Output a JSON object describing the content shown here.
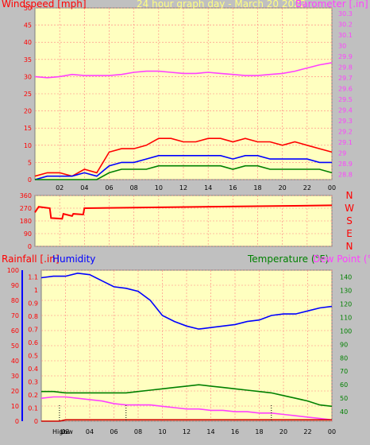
{
  "header": {
    "title": "24 hour graph day - March 20 2022",
    "windspeed_label": "Windspeed [mph]",
    "barometer_label": "Barometer [.in]"
  },
  "colors": {
    "background": "#c0c0c0",
    "plot_bg": "#ffffc0",
    "grid": "#ff8080",
    "title": "#ffff80",
    "red": "#ff0000",
    "blue": "#0000ff",
    "green": "#008000",
    "magenta": "#ff40ff",
    "dark_red": "#cc0000"
  },
  "time_ticks": [
    "02",
    "04",
    "06",
    "08",
    "10",
    "12",
    "14",
    "16",
    "18",
    "20",
    "22",
    "00"
  ],
  "panels": {
    "wind": {
      "left_ticks": [
        "0",
        "5",
        "10",
        "15",
        "20",
        "25",
        "30",
        "35",
        "40",
        "45",
        "50"
      ],
      "right_ticks": [
        "28.8",
        "28.9",
        "29",
        "29.1",
        "29.2",
        "29.3",
        "29.4",
        "29.5",
        "29.6",
        "29.7",
        "29.8",
        "29.9",
        "30",
        "30.1",
        "30.2",
        "30.3"
      ]
    },
    "direction": {
      "left_ticks": [
        "0",
        "90",
        "180",
        "270",
        "360"
      ],
      "compass": [
        "N",
        "W",
        "S",
        "E",
        "N"
      ]
    },
    "bottom": {
      "rain_label": "Rainfall [.in]",
      "humidity_label": "Humidity",
      "temp_label": "Temperature (°F)",
      "dew_label": "Dew Point (°F)",
      "rain_ticks": [
        "0",
        "0.1",
        "0.2",
        "0.3",
        "0.4",
        "0.5",
        "0.6",
        "0.7",
        "0.8",
        "0.9",
        "1",
        "1.1"
      ],
      "humidity_ticks": [
        "0",
        "10",
        "20",
        "30",
        "40",
        "50",
        "60",
        "70",
        "80",
        "90",
        "100"
      ],
      "temp_ticks": [
        "40",
        "50",
        "60",
        "70",
        "80",
        "90",
        "100",
        "110",
        "120",
        "130",
        "140"
      ],
      "high_label": "High",
      "low_label": "Low"
    }
  },
  "chart_data": [
    {
      "type": "line",
      "x_unit": "hour",
      "xlim": [
        0,
        24
      ],
      "ylim": [
        0,
        50
      ],
      "y2lim": [
        28.75,
        30.35
      ],
      "series": [
        {
          "name": "Windspeed",
          "color": "#ff0000",
          "x": [
            0,
            1,
            2,
            3,
            4,
            5,
            6,
            7,
            8,
            9,
            10,
            11,
            12,
            13,
            14,
            15,
            16,
            17,
            18,
            19,
            20,
            21,
            22,
            23,
            24
          ],
          "values": [
            1,
            2,
            2,
            1,
            3,
            2,
            8,
            9,
            9,
            10,
            12,
            12,
            11,
            11,
            12,
            12,
            11,
            12,
            11,
            11,
            10,
            11,
            10,
            9,
            8
          ]
        },
        {
          "name": "Windspeed average",
          "color": "#0000ff",
          "x": [
            0,
            1,
            2,
            3,
            4,
            5,
            6,
            7,
            8,
            9,
            10,
            11,
            12,
            13,
            14,
            15,
            16,
            17,
            18,
            19,
            20,
            21,
            22,
            23,
            24
          ],
          "values": [
            0,
            1,
            1,
            1,
            2,
            1,
            4,
            5,
            5,
            6,
            7,
            7,
            7,
            7,
            7,
            7,
            6,
            7,
            7,
            6,
            6,
            6,
            6,
            5,
            5
          ]
        },
        {
          "name": "Wind gust minimum",
          "color": "#008000",
          "x": [
            0,
            1,
            2,
            3,
            4,
            5,
            6,
            7,
            8,
            9,
            10,
            11,
            12,
            13,
            14,
            15,
            16,
            17,
            18,
            19,
            20,
            21,
            22,
            23,
            24
          ],
          "values": [
            0,
            0,
            0,
            0,
            0,
            0,
            2,
            3,
            3,
            3,
            4,
            4,
            4,
            4,
            4,
            4,
            3,
            4,
            4,
            3,
            3,
            3,
            3,
            3,
            2
          ]
        },
        {
          "name": "Barometer",
          "axis": "right",
          "color": "#ff40ff",
          "x": [
            0,
            1,
            2,
            3,
            4,
            5,
            6,
            7,
            8,
            9,
            10,
            11,
            12,
            13,
            14,
            15,
            16,
            17,
            18,
            19,
            20,
            21,
            22,
            23,
            24
          ],
          "values": [
            29.71,
            29.7,
            29.71,
            29.73,
            29.72,
            29.72,
            29.72,
            29.73,
            29.75,
            29.76,
            29.76,
            29.75,
            29.74,
            29.74,
            29.75,
            29.74,
            29.73,
            29.72,
            29.72,
            29.73,
            29.74,
            29.76,
            29.79,
            29.82,
            29.84
          ]
        }
      ]
    },
    {
      "type": "line",
      "x_unit": "hour",
      "xlim": [
        0,
        24
      ],
      "ylim": [
        0,
        360
      ],
      "series": [
        {
          "name": "Wind direction",
          "color": "#ff0000",
          "x": [
            0,
            0.3,
            1.2,
            1.3,
            2.2,
            2.3,
            3,
            3.1,
            3.9,
            4,
            24
          ],
          "values": [
            240,
            280,
            270,
            200,
            195,
            230,
            215,
            230,
            225,
            270,
            290
          ]
        }
      ]
    },
    {
      "type": "line",
      "x_unit": "hour",
      "xlim": [
        0,
        24
      ],
      "ylim": [
        0,
        1.15
      ],
      "humidity_lim": [
        0,
        100
      ],
      "temp_lim": [
        33,
        145
      ],
      "series": [
        {
          "name": "Humidity",
          "axis": "humidity",
          "color": "#0000ff",
          "x": [
            0,
            1,
            2,
            3,
            4,
            5,
            6,
            7,
            8,
            9,
            10,
            11,
            12,
            13,
            14,
            15,
            16,
            17,
            18,
            19,
            20,
            21,
            22,
            23,
            24
          ],
          "values": [
            95,
            96,
            96,
            98,
            97,
            93,
            89,
            88,
            86,
            80,
            70,
            66,
            63,
            61,
            62,
            63,
            64,
            66,
            67,
            70,
            71,
            71,
            73,
            75,
            76
          ]
        },
        {
          "name": "Temperature",
          "axis": "temp",
          "color": "#008000",
          "x": [
            0,
            1,
            2,
            3,
            4,
            5,
            6,
            7,
            8,
            9,
            10,
            11,
            12,
            13,
            14,
            15,
            16,
            17,
            18,
            19,
            20,
            21,
            22,
            23,
            24
          ],
          "values": [
            55,
            55,
            54,
            54,
            54,
            54,
            54,
            54,
            55,
            56,
            57,
            58,
            59,
            60,
            59,
            58,
            57,
            56,
            55,
            54,
            52,
            50,
            48,
            45,
            44
          ]
        },
        {
          "name": "Dew Point",
          "axis": "temp",
          "color": "#ff40ff",
          "x": [
            0,
            1,
            2,
            3,
            4,
            5,
            6,
            7,
            8,
            9,
            10,
            11,
            12,
            13,
            14,
            15,
            16,
            17,
            18,
            19,
            20,
            21,
            22,
            23,
            24
          ],
          "values": [
            50,
            51,
            51,
            50,
            49,
            48,
            46,
            45,
            45,
            45,
            44,
            43,
            42,
            42,
            41,
            41,
            40,
            40,
            39,
            39,
            38,
            37,
            36,
            35,
            34
          ]
        },
        {
          "name": "Rainfall",
          "axis": "rain",
          "color": "#cc0000",
          "x": [
            0,
            1.5,
            2,
            24
          ],
          "values": [
            0,
            0,
            0.01,
            0.01
          ]
        }
      ]
    }
  ]
}
